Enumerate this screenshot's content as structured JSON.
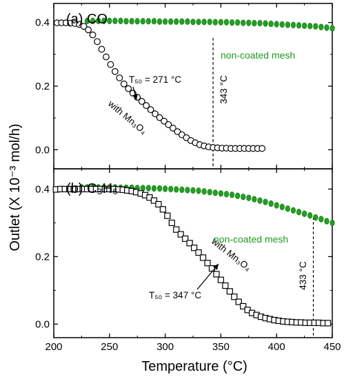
{
  "colors": {
    "green_series": "#22a022",
    "black_series": "#000000"
  },
  "y_axis_label": "Outlet (X 10⁻³ mol/h)",
  "chart_data": [
    {
      "type": "scatter",
      "title": "(a) CO",
      "xlabel": "Temperature (°C)",
      "ylabel": "Outlet (X 10⁻³ mol/h)",
      "xlim": [
        200,
        450
      ],
      "ylim": [
        -0.06,
        0.46
      ],
      "xticks": [
        "200",
        "250",
        "300",
        "350",
        "400",
        "450"
      ],
      "yticks": [
        "0.0",
        "0.2",
        "0.4"
      ],
      "series": [
        {
          "name": "non-coated mesh",
          "marker": "circle",
          "color": "#22a022",
          "x": [
            230,
            235,
            240,
            245,
            250,
            255,
            260,
            265,
            270,
            275,
            280,
            285,
            290,
            295,
            300,
            305,
            310,
            315,
            320,
            325,
            330,
            335,
            340,
            345,
            350,
            355,
            360,
            365,
            370,
            375,
            380,
            385,
            390,
            395,
            400,
            405,
            410,
            415,
            420,
            425,
            430,
            435,
            440,
            445,
            450
          ],
          "y": [
            0.405,
            0.405,
            0.405,
            0.405,
            0.405,
            0.405,
            0.405,
            0.404,
            0.404,
            0.404,
            0.404,
            0.404,
            0.404,
            0.403,
            0.403,
            0.403,
            0.403,
            0.403,
            0.403,
            0.402,
            0.402,
            0.402,
            0.402,
            0.401,
            0.401,
            0.401,
            0.4,
            0.4,
            0.399,
            0.399,
            0.398,
            0.398,
            0.397,
            0.396,
            0.395,
            0.394,
            0.393,
            0.392,
            0.391,
            0.39,
            0.389,
            0.388,
            0.386,
            0.384,
            0.382
          ]
        },
        {
          "name": "with Mn₃O₄",
          "marker": "circle",
          "color": "#000000",
          "x": [
            203,
            207,
            211,
            215,
            219,
            223,
            227,
            231,
            235,
            239,
            243,
            247,
            251,
            255,
            259,
            263,
            267,
            271,
            275,
            279,
            283,
            287,
            291,
            295,
            299,
            303,
            307,
            311,
            315,
            319,
            323,
            327,
            331,
            335,
            339,
            343,
            347,
            351,
            355,
            359,
            363,
            367,
            371,
            375,
            379,
            383,
            387
          ],
          "y": [
            0.399,
            0.399,
            0.399,
            0.398,
            0.397,
            0.394,
            0.388,
            0.377,
            0.361,
            0.34,
            0.316,
            0.292,
            0.268,
            0.246,
            0.226,
            0.207,
            0.192,
            0.178,
            0.165,
            0.152,
            0.139,
            0.126,
            0.113,
            0.101,
            0.09,
            0.079,
            0.068,
            0.057,
            0.047,
            0.038,
            0.029,
            0.022,
            0.016,
            0.012,
            0.009,
            0.007,
            0.006,
            0.005,
            0.005,
            0.004,
            0.004,
            0.004,
            0.004,
            0.004,
            0.004,
            0.004,
            0.004
          ]
        }
      ],
      "annotations": {
        "t50_label": "T₅₀ = 271 °C",
        "t50_x": 271,
        "t50_y": 0.178,
        "vline_label": "343 °C",
        "vline_x": 343,
        "green_label": "non-coated mesh",
        "black_label": "with Mn₃O₄"
      }
    },
    {
      "type": "scatter",
      "title": "(b) C₃H₆",
      "xlabel": "Temperature (°C)",
      "ylabel": "Outlet (X 10⁻³ mol/h)",
      "xlim": [
        200,
        450
      ],
      "ylim": [
        -0.04,
        0.46
      ],
      "xticks": [
        "200",
        "250",
        "300",
        "350",
        "400",
        "450"
      ],
      "yticks": [
        "0.0",
        "0.2",
        "0.4"
      ],
      "series": [
        {
          "name": "non-coated mesh",
          "marker": "circle",
          "color": "#22a022",
          "x": [
            225,
            230,
            235,
            240,
            245,
            250,
            255,
            260,
            265,
            270,
            275,
            280,
            285,
            290,
            295,
            300,
            305,
            310,
            315,
            320,
            325,
            330,
            335,
            340,
            345,
            350,
            355,
            360,
            365,
            370,
            375,
            380,
            385,
            390,
            395,
            400,
            405,
            410,
            415,
            420,
            425,
            430,
            435,
            440,
            445,
            450
          ],
          "y": [
            0.405,
            0.405,
            0.405,
            0.405,
            0.405,
            0.405,
            0.405,
            0.404,
            0.404,
            0.404,
            0.403,
            0.403,
            0.403,
            0.402,
            0.402,
            0.401,
            0.4,
            0.399,
            0.398,
            0.397,
            0.396,
            0.395,
            0.393,
            0.391,
            0.389,
            0.387,
            0.385,
            0.383,
            0.38,
            0.377,
            0.374,
            0.37,
            0.366,
            0.362,
            0.357,
            0.352,
            0.347,
            0.342,
            0.337,
            0.332,
            0.327,
            0.322,
            0.316,
            0.311,
            0.305,
            0.3
          ]
        },
        {
          "name": "with Mn₃O₄",
          "marker": "square",
          "color": "#000000",
          "x": [
            202,
            206,
            210,
            214,
            218,
            222,
            226,
            230,
            234,
            238,
            242,
            246,
            250,
            254,
            258,
            262,
            266,
            270,
            274,
            278,
            282,
            286,
            290,
            294,
            298,
            302,
            306,
            310,
            314,
            318,
            322,
            326,
            330,
            334,
            338,
            342,
            346,
            350,
            354,
            358,
            362,
            366,
            370,
            374,
            378,
            382,
            386,
            390,
            394,
            398,
            402,
            406,
            410,
            414,
            418,
            422,
            426,
            430,
            434,
            438,
            442,
            446
          ],
          "y": [
            0.399,
            0.4,
            0.4,
            0.4,
            0.4,
            0.4,
            0.4,
            0.4,
            0.4,
            0.4,
            0.4,
            0.4,
            0.4,
            0.4,
            0.399,
            0.398,
            0.396,
            0.394,
            0.391,
            0.387,
            0.382,
            0.375,
            0.366,
            0.355,
            0.34,
            0.321,
            0.3,
            0.28,
            0.266,
            0.253,
            0.24,
            0.226,
            0.212,
            0.197,
            0.181,
            0.165,
            0.148,
            0.131,
            0.114,
            0.097,
            0.081,
            0.066,
            0.053,
            0.042,
            0.033,
            0.027,
            0.022,
            0.018,
            0.015,
            0.012,
            0.01,
            0.008,
            0.007,
            0.006,
            0.005,
            0.005,
            0.004,
            0.004,
            0.004,
            0.004,
            0.003,
            0.003
          ]
        }
      ],
      "annotations": {
        "t50_label": "T₅₀ = 347 °C",
        "t50_x": 347,
        "t50_y": 0.203,
        "vline_label": "433 °C",
        "vline_x": 433,
        "green_label": "non-coated mesh",
        "black_label": "with Mn₃O₄"
      }
    }
  ]
}
